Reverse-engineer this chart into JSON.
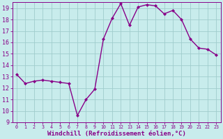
{
  "x": [
    0,
    1,
    2,
    3,
    4,
    5,
    6,
    7,
    8,
    9,
    10,
    11,
    12,
    13,
    14,
    15,
    16,
    17,
    18,
    19,
    20,
    21,
    22,
    23
  ],
  "y": [
    13.2,
    12.4,
    12.6,
    12.7,
    12.6,
    12.5,
    12.4,
    9.6,
    11.0,
    11.9,
    16.3,
    18.1,
    19.4,
    17.5,
    19.1,
    19.3,
    19.2,
    18.5,
    18.8,
    18.0,
    16.3,
    15.5,
    15.4,
    14.9
  ],
  "line_color": "#880088",
  "marker": "D",
  "marker_size": 2.0,
  "line_width": 1.0,
  "bg_color": "#c8ecec",
  "grid_color": "#a0cccc",
  "xlabel": "Windchill (Refroidissement éolien,°C)",
  "xlabel_fontsize": 6.5,
  "tick_fontsize": 6,
  "ylim": [
    9,
    19.5
  ],
  "xlim": [
    -0.5,
    23.5
  ],
  "yticks": [
    9,
    10,
    11,
    12,
    13,
    14,
    15,
    16,
    17,
    18,
    19
  ],
  "xticks": [
    0,
    1,
    2,
    3,
    4,
    5,
    6,
    7,
    8,
    9,
    10,
    11,
    12,
    13,
    14,
    15,
    16,
    17,
    18,
    19,
    20,
    21,
    22,
    23
  ],
  "spine_color": "#880088",
  "text_color": "#880088"
}
